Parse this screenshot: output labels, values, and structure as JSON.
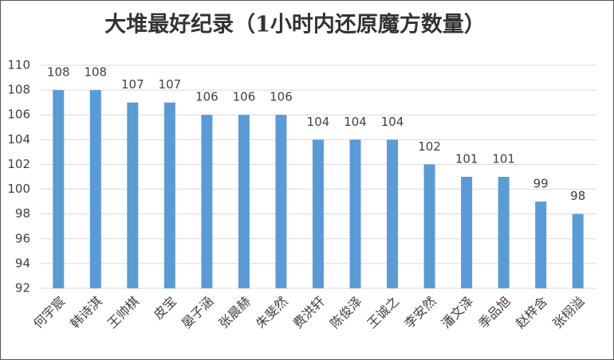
{
  "chart_data": {
    "type": "bar",
    "title": "大堆最好纪录（1小时内还原魔方数量）",
    "categories": [
      "何宇宸",
      "韩诗淇",
      "王帅棋",
      "皮宝",
      "晏子涵",
      "张晨赫",
      "朱斐然",
      "费洪轩",
      "陈俊泽",
      "王诚之",
      "李安然",
      "潘文泽",
      "季品旭",
      "赵梓含",
      "张栩溢"
    ],
    "values": [
      108,
      108,
      107,
      107,
      106,
      106,
      106,
      104,
      104,
      104,
      102,
      101,
      101,
      99,
      98
    ],
    "color": "#5b9bd5",
    "ylim": [
      92,
      110
    ],
    "yticks": [
      92,
      94,
      96,
      98,
      100,
      102,
      104,
      106,
      108,
      110
    ],
    "grid": true
  }
}
